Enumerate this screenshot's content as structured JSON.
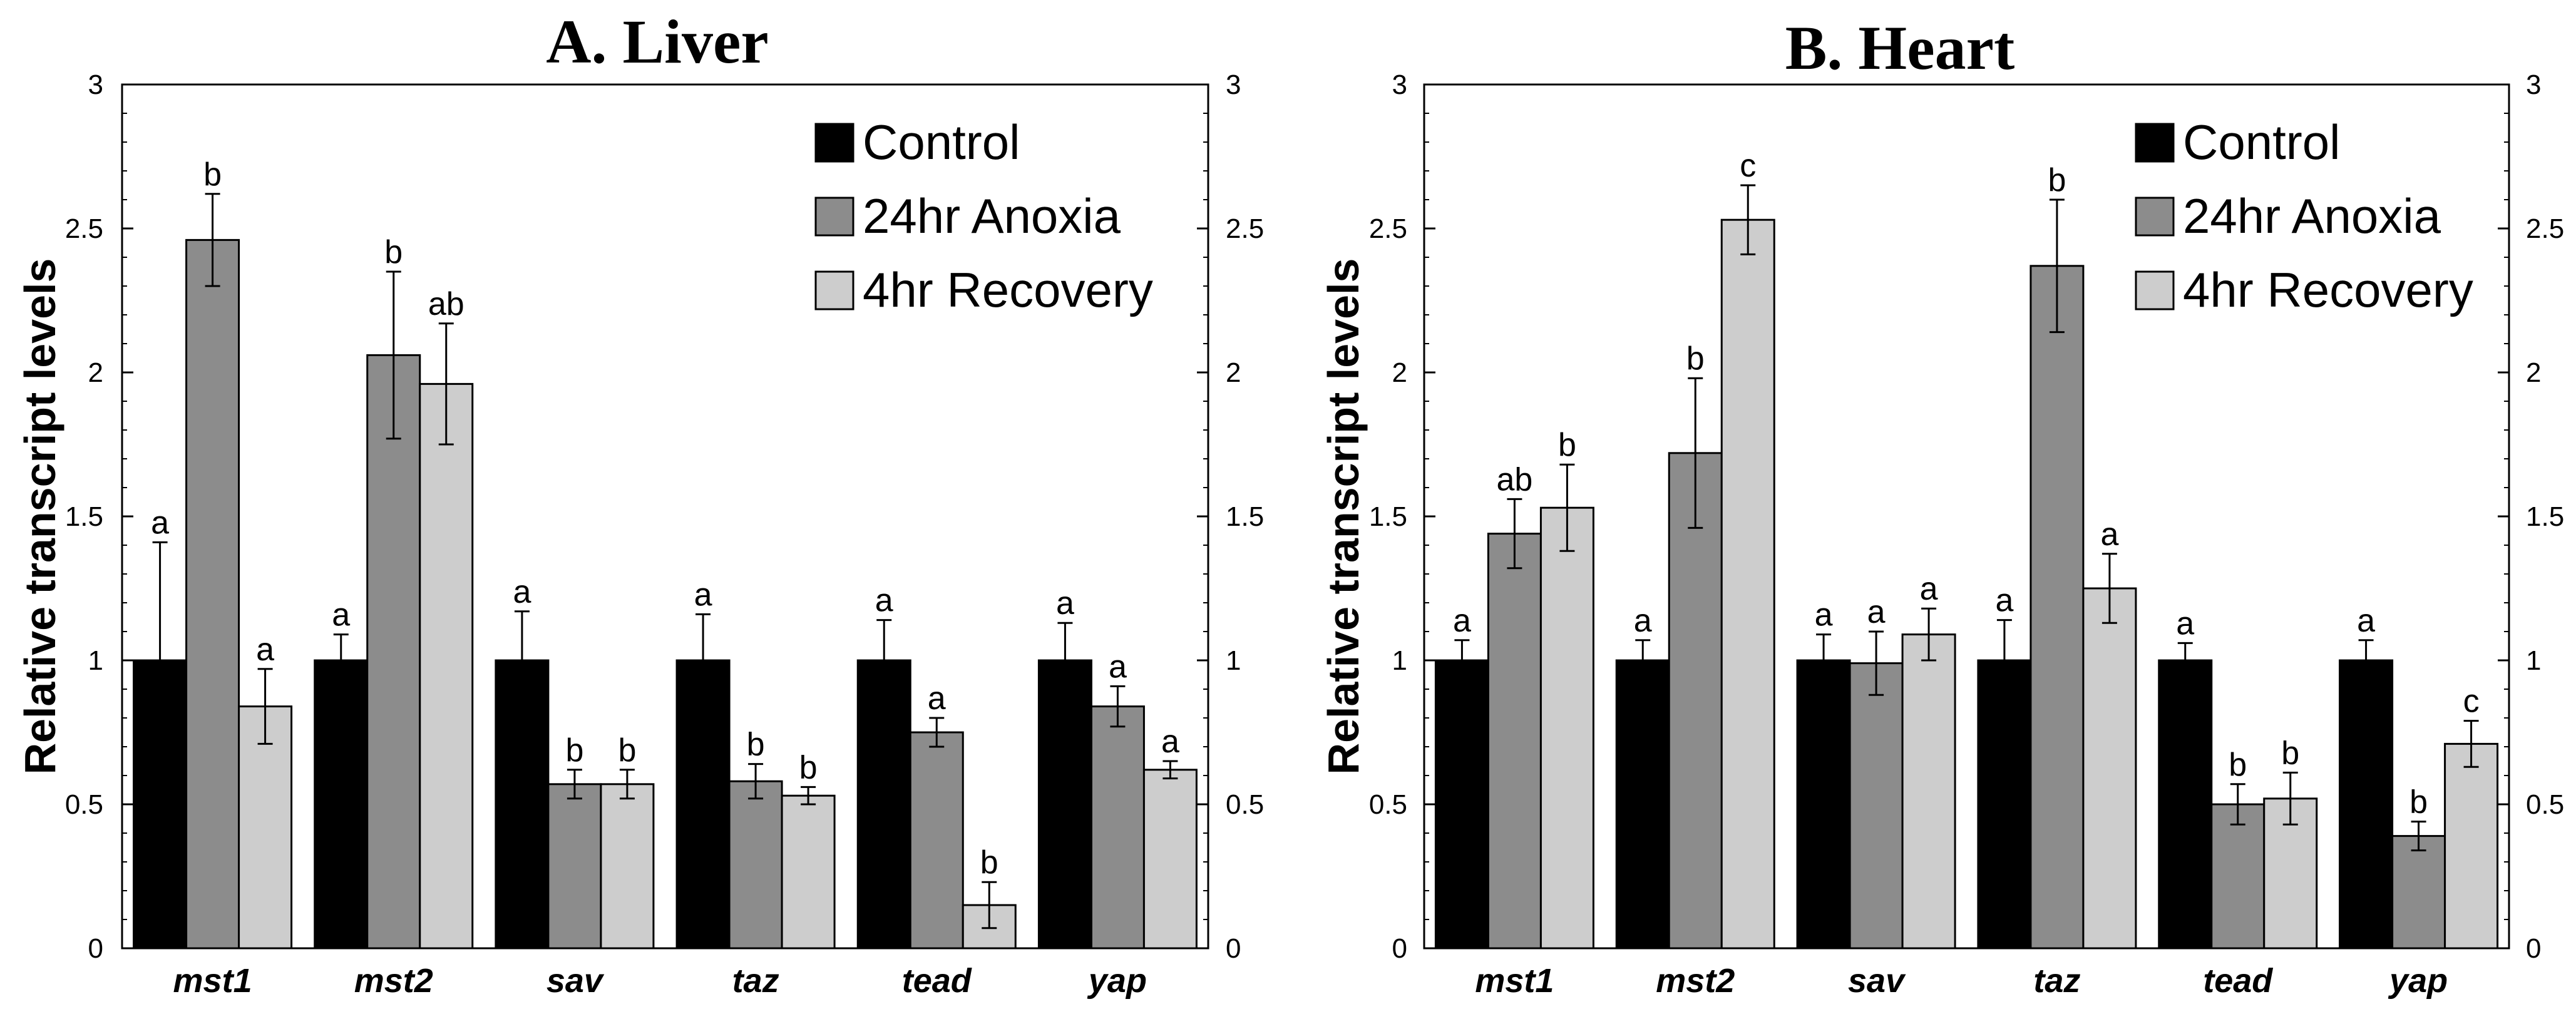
{
  "chart_data": [
    {
      "type": "bar",
      "title": "A. Liver",
      "xlabel": "",
      "ylabel": "Relative transcript levels",
      "ylim": [
        0,
        3
      ],
      "yticks": [
        "0",
        "0.5",
        "1",
        "1.5",
        "2",
        "2.5",
        "3"
      ],
      "categories": [
        "mst1",
        "mst2",
        "sav",
        "taz",
        "tead",
        "yap"
      ],
      "legend_position": "top-right",
      "series": [
        {
          "name": "Control",
          "color": "#000000",
          "values": [
            1.0,
            1.0,
            1.0,
            1.0,
            1.0,
            1.0
          ],
          "errors": [
            0.41,
            0.09,
            0.17,
            0.16,
            0.14,
            0.13
          ],
          "labels": [
            "a",
            "a",
            "a",
            "a",
            "a",
            "a"
          ]
        },
        {
          "name": "24hr Anoxia",
          "color": "#8c8c8c",
          "values": [
            2.46,
            2.06,
            0.57,
            0.58,
            0.75,
            0.84
          ],
          "errors": [
            0.16,
            0.29,
            0.05,
            0.06,
            0.05,
            0.07
          ],
          "labels": [
            "b",
            "b",
            "b",
            "b",
            "a",
            "a"
          ]
        },
        {
          "name": "4hr Recovery",
          "color": "#cdcdcd",
          "values": [
            0.84,
            1.96,
            0.57,
            0.53,
            0.15,
            0.62
          ],
          "errors": [
            0.13,
            0.21,
            0.05,
            0.03,
            0.08,
            0.03
          ],
          "labels": [
            "a",
            "ab",
            "b",
            "b",
            "b",
            "a"
          ]
        }
      ]
    },
    {
      "type": "bar",
      "title": "B. Heart",
      "xlabel": "",
      "ylabel": "Relative transcript levels",
      "ylim": [
        0,
        3
      ],
      "yticks": [
        "0",
        "0.5",
        "1",
        "1.5",
        "2",
        "2.5",
        "3"
      ],
      "categories": [
        "mst1",
        "mst2",
        "sav",
        "taz",
        "tead",
        "yap"
      ],
      "legend_position": "top-right",
      "series": [
        {
          "name": "Control",
          "color": "#000000",
          "values": [
            1.0,
            1.0,
            1.0,
            1.0,
            1.0,
            1.0
          ],
          "errors": [
            0.07,
            0.07,
            0.09,
            0.14,
            0.06,
            0.07
          ],
          "labels": [
            "a",
            "a",
            "a",
            "a",
            "a",
            "a"
          ]
        },
        {
          "name": "24hr Anoxia",
          "color": "#8c8c8c",
          "values": [
            1.44,
            1.72,
            0.99,
            2.37,
            0.5,
            0.39
          ],
          "errors": [
            0.12,
            0.26,
            0.11,
            0.23,
            0.07,
            0.05
          ],
          "labels": [
            "ab",
            "b",
            "a",
            "b",
            "b",
            "b"
          ]
        },
        {
          "name": "4hr Recovery",
          "color": "#cdcdcd",
          "values": [
            1.53,
            2.53,
            1.09,
            1.25,
            0.52,
            0.71
          ],
          "errors": [
            0.15,
            0.12,
            0.09,
            0.12,
            0.09,
            0.08
          ],
          "labels": [
            "b",
            "c",
            "a",
            "a",
            "b",
            "c"
          ]
        }
      ]
    }
  ]
}
